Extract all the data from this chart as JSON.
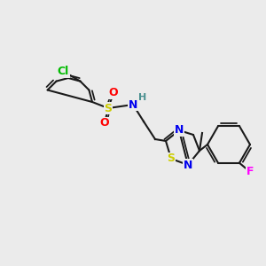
{
  "bg_color": "#ebebeb",
  "bond_color": "#1a1a1a",
  "bond_width": 1.5,
  "atom_colors": {
    "Cl": "#00bb00",
    "S": "#cccc00",
    "O": "#ff0000",
    "N": "#0000ee",
    "F": "#ff00ff",
    "H": "#4a9090",
    "C": "#1a1a1a"
  },
  "font_size": 9,
  "font_size_small": 8
}
